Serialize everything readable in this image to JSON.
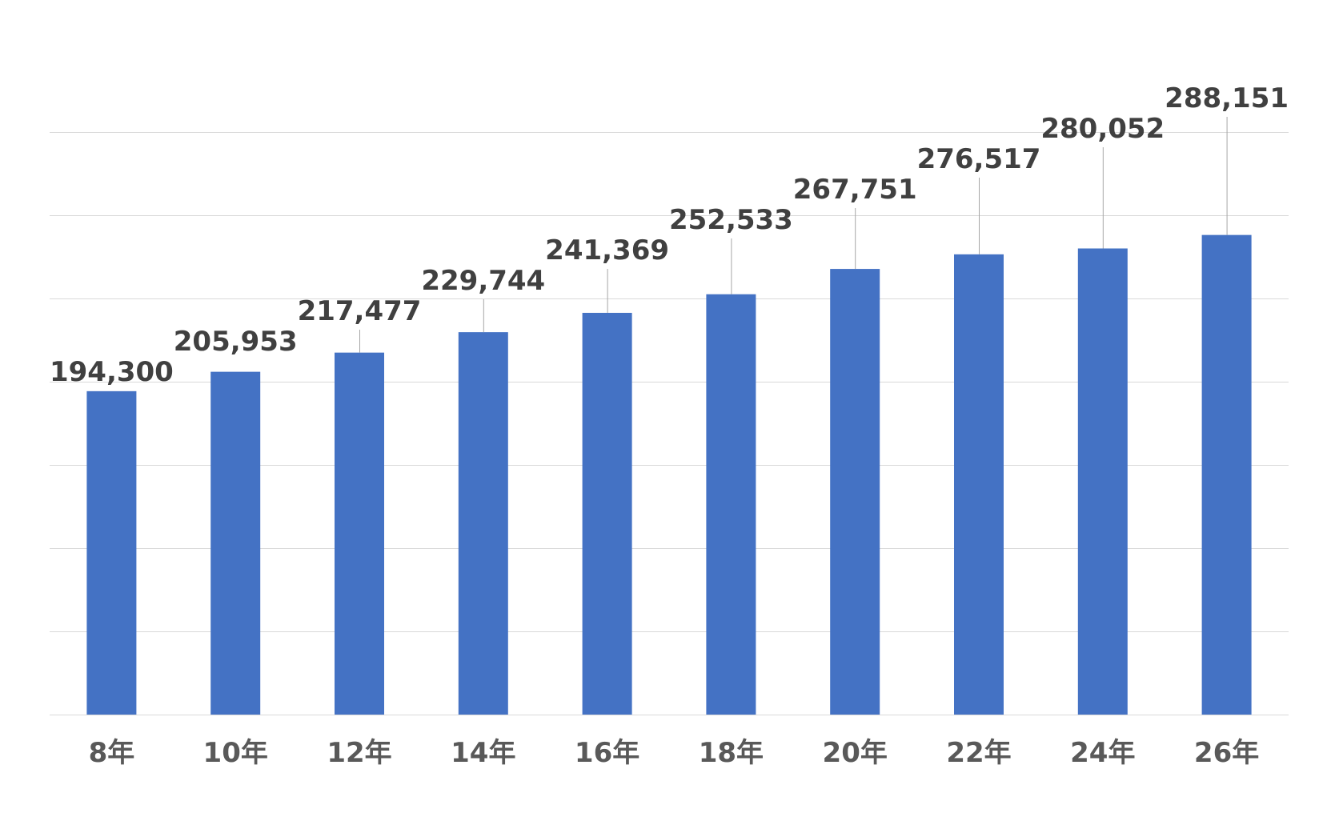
{
  "chart_data": {
    "type": "bar",
    "title": "",
    "xlabel": "",
    "ylabel": "",
    "categories": [
      "8年",
      "10年",
      "12年",
      "14年",
      "16年",
      "18年",
      "20年",
      "22年",
      "24年",
      "26年"
    ],
    "values": [
      194300,
      205953,
      217477,
      229744,
      241369,
      252533,
      267751,
      276517,
      280052,
      288151
    ],
    "value_labels": [
      "194,300",
      "205,953",
      "217,477",
      "229,744",
      "241,369",
      "252,533",
      "267,751",
      "276,517",
      "280,052",
      "288,151"
    ],
    "ylim": [
      0,
      350000
    ],
    "y_tick_step": 50000,
    "y_tick_labels_visible": false,
    "grid": true,
    "legend": "none",
    "colors": {
      "bar": "#4472c4",
      "grid": "#d9d9d9",
      "leader_line": "#a6a6a6",
      "data_label": "#404040",
      "tick_label": "#595959"
    }
  }
}
